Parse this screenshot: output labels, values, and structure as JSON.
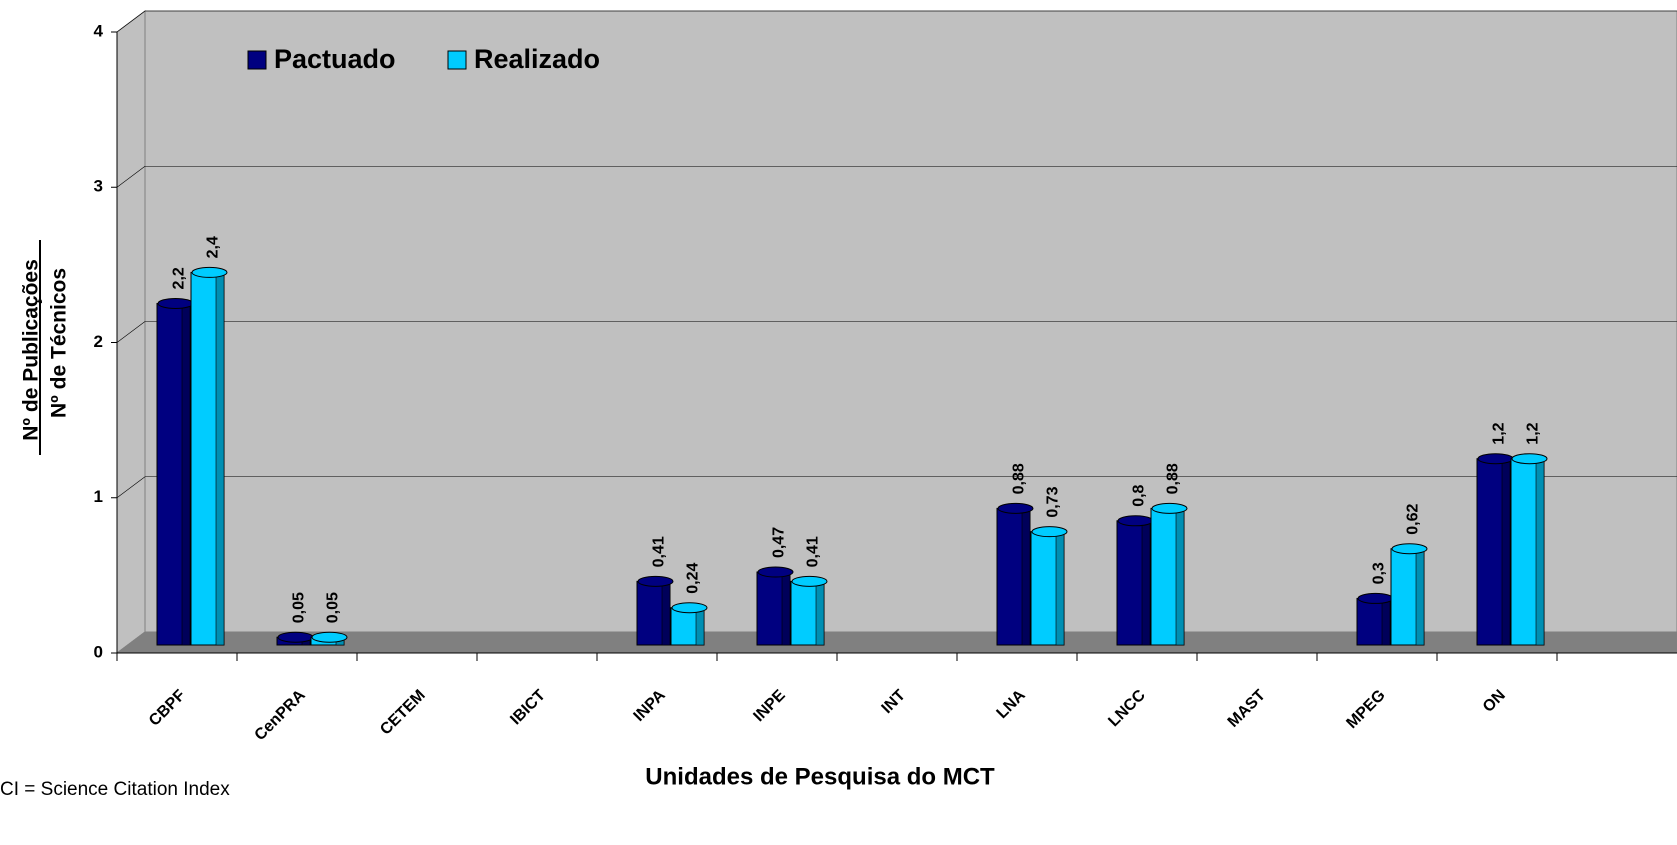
{
  "chart_data": {
    "type": "bar3d",
    "y_label_top": "Nº de Publicações",
    "y_label_bottom": "Nº de Técnicos",
    "x_label": "Unidades de Pesquisa do MCT",
    "footnote": "CI = Science Citation Index",
    "categories": [
      "CBPF",
      "CenPRA",
      "CETEM",
      "IBICT",
      "INPA",
      "INPE",
      "INT",
      "LNA",
      "LNCC",
      "MAST",
      "MPEG",
      "ON"
    ],
    "series": [
      {
        "name": "Pactuado",
        "color": "#000080",
        "values": [
          2.2,
          0.05,
          null,
          null,
          0.41,
          0.47,
          null,
          0.88,
          0.8,
          null,
          0.3,
          1.2
        ],
        "value_labels": [
          "2,2",
          "0,05",
          null,
          null,
          "0,41",
          "0,47",
          null,
          "0,88",
          "0,8",
          null,
          "0,3",
          "1,2"
        ]
      },
      {
        "name": "Realizado",
        "color": "#00ccff",
        "values": [
          2.4,
          0.05,
          null,
          null,
          0.24,
          0.41,
          null,
          0.73,
          0.88,
          null,
          0.62,
          1.2
        ],
        "value_labels": [
          "2,4",
          "0,05",
          null,
          null,
          "0,24",
          "0,41",
          null,
          "0,73",
          "0,88",
          null,
          "0,62",
          "1,2"
        ]
      }
    ],
    "ylim": [
      0,
      4
    ],
    "yticks": [
      0,
      1,
      2,
      3,
      4
    ],
    "grid": true,
    "legend": "top-left"
  }
}
